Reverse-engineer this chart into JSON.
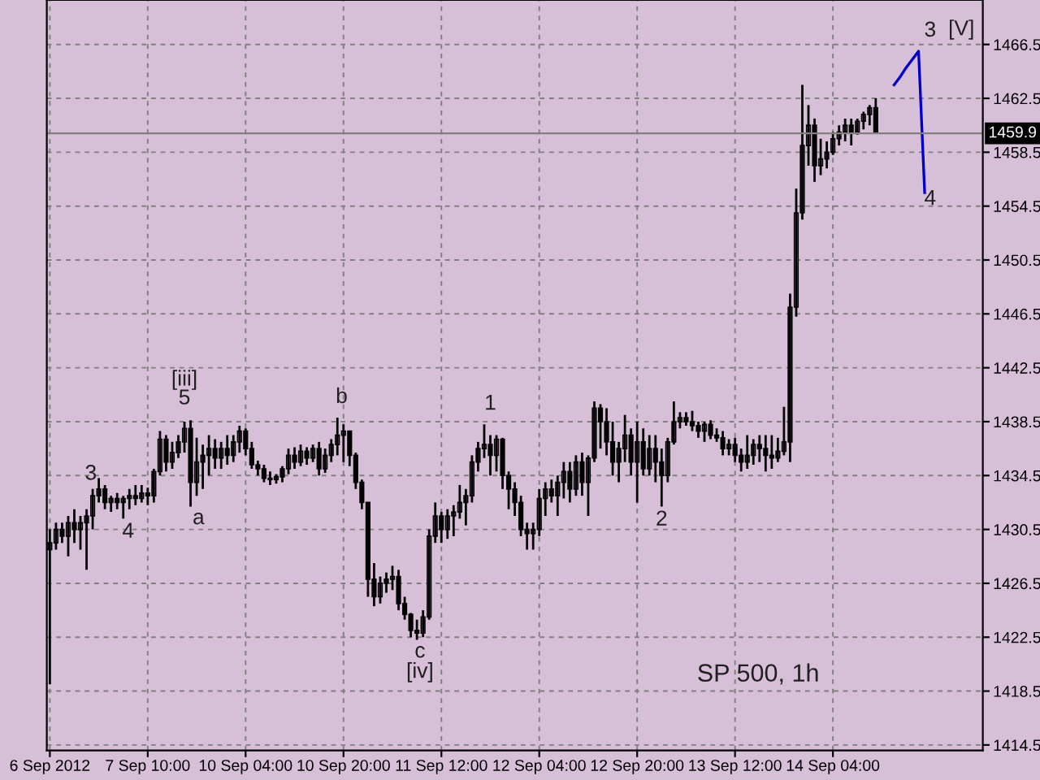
{
  "chart_data": {
    "type": "candlestick",
    "color": "#000000",
    "categories": [
      "6 Sep 2012",
      null,
      null,
      null,
      null,
      null,
      null,
      null,
      null,
      null,
      null,
      null,
      null,
      null,
      null,
      null,
      "7 Sep 10:00",
      null,
      null,
      null,
      null,
      null,
      null,
      null,
      null,
      null,
      null,
      null,
      null,
      null,
      null,
      null,
      "10 Sep 04:00",
      null,
      null,
      null,
      null,
      null,
      null,
      null,
      null,
      null,
      null,
      null,
      null,
      null,
      null,
      null,
      "10 Sep 20:00",
      null,
      null,
      null,
      null,
      null,
      null,
      null,
      null,
      null,
      null,
      null,
      null,
      null,
      null,
      null,
      "11 Sep 12:00",
      null,
      null,
      null,
      null,
      null,
      null,
      null,
      null,
      null,
      null,
      null,
      null,
      null,
      null,
      null,
      "12 Sep 04:00",
      null,
      null,
      null,
      null,
      null,
      null,
      null,
      null,
      null,
      null,
      null,
      null,
      null,
      null,
      null,
      "12 Sep 20:00",
      null,
      null,
      null,
      null,
      null,
      null,
      null,
      null,
      null,
      null,
      null,
      null,
      null,
      null,
      null,
      "13 Sep 12:00",
      null,
      null,
      null,
      null,
      null,
      null,
      null,
      null,
      null,
      null,
      null,
      null,
      null,
      null,
      null,
      "14 Sep 04:00",
      null,
      null,
      null,
      null,
      null,
      null,
      null,
      null,
      null,
      null,
      null,
      null,
      null,
      null,
      null,
      null,
      null,
      null,
      null,
      null,
      null,
      null,
      null,
      null
    ],
    "ohlc": [
      [
        1429,
        1430.5,
        1419,
        1429.5
      ],
      [
        1429.5,
        1431,
        1429,
        1430.5
      ],
      [
        1430.5,
        1431,
        1429.5,
        1430
      ],
      [
        1430,
        1431.5,
        1428.5,
        1431
      ],
      [
        1431,
        1432,
        1429.5,
        1430.5
      ],
      [
        1430.5,
        1431.5,
        1429,
        1431
      ],
      [
        1431,
        1432,
        1427.5,
        1431.5
      ],
      [
        1431.5,
        1433.5,
        1430.5,
        1433
      ],
      [
        1433,
        1434.3,
        1432.5,
        1433.5
      ],
      [
        1433.5,
        1433.8,
        1432,
        1432.5
      ],
      [
        1432.5,
        1433,
        1431.8,
        1432.8
      ],
      [
        1432.8,
        1433.2,
        1432,
        1432.5
      ],
      [
        1432.5,
        1433,
        1431.3,
        1432.8
      ],
      [
        1432.8,
        1433.5,
        1432,
        1433
      ],
      [
        1433,
        1433.8,
        1432.3,
        1432.8
      ],
      [
        1432.8,
        1433.8,
        1432.5,
        1433.2
      ],
      [
        1433.2,
        1433.6,
        1432.3,
        1433
      ],
      [
        1433,
        1435,
        1432.5,
        1434.8
      ],
      [
        1434.8,
        1437.8,
        1434.5,
        1437.2
      ],
      [
        1437.2,
        1437.5,
        1434.8,
        1435.5
      ],
      [
        1435.5,
        1437,
        1435,
        1436.2
      ],
      [
        1436.2,
        1437.5,
        1435.8,
        1437
      ],
      [
        1437,
        1438.5,
        1436.2,
        1438
      ],
      [
        1438,
        1438.6,
        1432.2,
        1434
      ],
      [
        1434,
        1437.3,
        1433,
        1435.5
      ],
      [
        1435.5,
        1436.8,
        1433.5,
        1436
      ],
      [
        1436,
        1437.5,
        1434.5,
        1436.5
      ],
      [
        1436.5,
        1437.2,
        1435,
        1435.8
      ],
      [
        1435.8,
        1437,
        1435,
        1436.5
      ],
      [
        1436.5,
        1437.5,
        1435.3,
        1436
      ],
      [
        1436,
        1437.5,
        1435.5,
        1437
      ],
      [
        1437,
        1438.2,
        1436.2,
        1437.8
      ],
      [
        1437.8,
        1438,
        1436,
        1436.5
      ],
      [
        1436.5,
        1437,
        1435,
        1435.3
      ],
      [
        1435.3,
        1435.6,
        1434.5,
        1435
      ],
      [
        1435,
        1435.3,
        1434,
        1434.3
      ],
      [
        1434.3,
        1434.8,
        1433.8,
        1434.2
      ],
      [
        1434.2,
        1434.6,
        1433.9,
        1434.4
      ],
      [
        1434.4,
        1435.2,
        1434,
        1435
      ],
      [
        1435,
        1436.5,
        1434.6,
        1436
      ],
      [
        1436,
        1436.6,
        1435,
        1435.5
      ],
      [
        1435.5,
        1436.8,
        1435.2,
        1436.3
      ],
      [
        1436.3,
        1436.6,
        1435.3,
        1435.8
      ],
      [
        1435.8,
        1436.8,
        1435.5,
        1436.5
      ],
      [
        1436.5,
        1437,
        1434.5,
        1435
      ],
      [
        1435,
        1436.5,
        1434.7,
        1436
      ],
      [
        1436,
        1437.2,
        1435.5,
        1436.8
      ],
      [
        1436.8,
        1438.8,
        1436,
        1437.5
      ],
      [
        1437.5,
        1438.3,
        1435.5,
        1437.8
      ],
      [
        1437.8,
        1437.8,
        1435.2,
        1436
      ],
      [
        1436,
        1436.2,
        1433.5,
        1434
      ],
      [
        1434,
        1434.2,
        1432,
        1432.5
      ],
      [
        1432.5,
        1432.5,
        1425.5,
        1426.8
      ],
      [
        1426.8,
        1428,
        1424.8,
        1425.5
      ],
      [
        1425.5,
        1427,
        1425,
        1426.5
      ],
      [
        1426.5,
        1427.3,
        1425.8,
        1426.8
      ],
      [
        1426.8,
        1427.8,
        1426,
        1427
      ],
      [
        1427,
        1427.5,
        1424.5,
        1425
      ],
      [
        1425,
        1425.5,
        1423.8,
        1424.2
      ],
      [
        1424.2,
        1424.3,
        1422.5,
        1423
      ],
      [
        1423,
        1423.8,
        1422.3,
        1422.8
      ],
      [
        1422.8,
        1424.5,
        1422.5,
        1424
      ],
      [
        1424,
        1430.5,
        1423.8,
        1430
      ],
      [
        1430,
        1432.5,
        1429.5,
        1431.5
      ],
      [
        1431.5,
        1431.8,
        1429.5,
        1430.5
      ],
      [
        1430.5,
        1432,
        1429.8,
        1431.5
      ],
      [
        1431.5,
        1432.3,
        1430,
        1431.8
      ],
      [
        1431.8,
        1433.8,
        1431.3,
        1432.5
      ],
      [
        1432.5,
        1433.5,
        1430.8,
        1433
      ],
      [
        1433,
        1436,
        1432.5,
        1435.5
      ],
      [
        1435.5,
        1437,
        1434.8,
        1436.5
      ],
      [
        1436.5,
        1438.3,
        1435.8,
        1436.8
      ],
      [
        1436.8,
        1437.5,
        1434.5,
        1436
      ],
      [
        1436,
        1437.5,
        1434.8,
        1437.2
      ],
      [
        1437.2,
        1437.3,
        1433.5,
        1434.5
      ],
      [
        1434.5,
        1434.8,
        1432,
        1433.5
      ],
      [
        1433.5,
        1434,
        1431.5,
        1432.5
      ],
      [
        1432.5,
        1433,
        1430,
        1430.5
      ],
      [
        1430.5,
        1431,
        1429,
        1430.2
      ],
      [
        1430.2,
        1431,
        1429,
        1430.5
      ],
      [
        1430.5,
        1433.5,
        1430,
        1432.8
      ],
      [
        1432.8,
        1434,
        1431.5,
        1433.5
      ],
      [
        1433.5,
        1434.2,
        1432.5,
        1433
      ],
      [
        1433,
        1434.5,
        1431.5,
        1434
      ],
      [
        1434,
        1435.5,
        1432.8,
        1434.8
      ],
      [
        1434.8,
        1435.5,
        1432.5,
        1433.5
      ],
      [
        1433.5,
        1436,
        1433,
        1435.5
      ],
      [
        1435.5,
        1436.2,
        1433,
        1434
      ],
      [
        1434,
        1436,
        1431.5,
        1435.8
      ],
      [
        1435.8,
        1440,
        1435.5,
        1439.5
      ],
      [
        1439.5,
        1439.8,
        1436.5,
        1438.5
      ],
      [
        1438.5,
        1439.5,
        1436,
        1437
      ],
      [
        1437,
        1438.5,
        1434.5,
        1435.5
      ],
      [
        1435.5,
        1437,
        1434,
        1436.5
      ],
      [
        1436.5,
        1439,
        1435.5,
        1437.5
      ],
      [
        1437.5,
        1438,
        1434.5,
        1435.5
      ],
      [
        1435.5,
        1438.5,
        1432.5,
        1437
      ],
      [
        1437,
        1438,
        1434.5,
        1435
      ],
      [
        1435,
        1437.5,
        1434.5,
        1436.5
      ],
      [
        1436.5,
        1437.5,
        1434,
        1435.5
      ],
      [
        1435.5,
        1436.5,
        1432.2,
        1434.5
      ],
      [
        1434.5,
        1437.3,
        1434,
        1437
      ],
      [
        1437,
        1440,
        1436.8,
        1438.5
      ],
      [
        1438.5,
        1439.2,
        1438,
        1438.8
      ],
      [
        1438.8,
        1439.2,
        1438.2,
        1438.5
      ],
      [
        1438.5,
        1439.3,
        1437.8,
        1438.2
      ],
      [
        1438.2,
        1438.5,
        1437.3,
        1437.8
      ],
      [
        1437.8,
        1438.5,
        1437,
        1438.3
      ],
      [
        1438.3,
        1438.6,
        1437.2,
        1437.5
      ],
      [
        1437.5,
        1438,
        1437,
        1437.3
      ],
      [
        1437.3,
        1437.8,
        1436,
        1436.5
      ],
      [
        1436.5,
        1437.2,
        1436,
        1436.8
      ],
      [
        1436.8,
        1437.3,
        1435.5,
        1436
      ],
      [
        1436,
        1436.5,
        1434.8,
        1435.5
      ],
      [
        1435.5,
        1437.5,
        1435,
        1436
      ],
      [
        1436,
        1437.2,
        1435.3,
        1436.8
      ],
      [
        1436.8,
        1437.5,
        1435.5,
        1436.5
      ],
      [
        1436.5,
        1437.5,
        1434.8,
        1436
      ],
      [
        1436,
        1437.5,
        1435,
        1435.8
      ],
      [
        1435.8,
        1437.3,
        1435.5,
        1436.3
      ],
      [
        1436.3,
        1439.6,
        1436,
        1437
      ],
      [
        1437,
        1448,
        1435.5,
        1447
      ],
      [
        1447,
        1455.8,
        1446.3,
        1454
      ],
      [
        1454,
        1463.5,
        1453.5,
        1459
      ],
      [
        1459,
        1462,
        1457.5,
        1460.5
      ],
      [
        1460.5,
        1461,
        1456.3,
        1457.5
      ],
      [
        1457.5,
        1459.5,
        1456.8,
        1458
      ],
      [
        1458,
        1459.3,
        1457.3,
        1458.5
      ],
      [
        1458.5,
        1460,
        1458.3,
        1459.5
      ],
      [
        1459.5,
        1460.5,
        1459,
        1460
      ],
      [
        1460,
        1461,
        1459.3,
        1460.5
      ],
      [
        1460.5,
        1461,
        1459,
        1460
      ],
      [
        1460,
        1461,
        1459.8,
        1460.8
      ],
      [
        1460.8,
        1461.5,
        1460.2,
        1461.3
      ],
      [
        1461.3,
        1462,
        1460.5,
        1461.8
      ],
      [
        1461.8,
        1462.5,
        1459.9,
        1459.9
      ],
      null,
      null,
      null,
      null,
      null,
      null,
      null,
      null,
      null,
      null,
      null,
      null,
      null,
      null,
      null,
      null,
      null
    ],
    "series": [
      {
        "type": "line",
        "color": "#0000cc",
        "values": [
          null,
          null,
          null,
          null,
          null,
          null,
          null,
          null,
          null,
          null,
          null,
          null,
          null,
          null,
          null,
          null,
          null,
          null,
          null,
          null,
          null,
          null,
          null,
          null,
          null,
          null,
          null,
          null,
          null,
          null,
          null,
          null,
          null,
          null,
          null,
          null,
          null,
          null,
          null,
          null,
          null,
          null,
          null,
          null,
          null,
          null,
          null,
          null,
          null,
          null,
          null,
          null,
          null,
          null,
          null,
          null,
          null,
          null,
          null,
          null,
          null,
          null,
          null,
          null,
          null,
          null,
          null,
          null,
          null,
          null,
          null,
          null,
          null,
          null,
          null,
          null,
          null,
          null,
          null,
          null,
          null,
          null,
          null,
          null,
          null,
          null,
          null,
          null,
          null,
          null,
          null,
          null,
          null,
          null,
          null,
          null,
          null,
          null,
          null,
          null,
          null,
          null,
          null,
          null,
          null,
          null,
          null,
          null,
          null,
          null,
          null,
          null,
          null,
          null,
          null,
          null,
          null,
          null,
          null,
          null,
          null,
          null,
          null,
          null,
          null,
          null,
          null,
          null,
          null,
          null,
          null,
          null,
          null,
          null,
          null,
          null,
          null,
          null,
          1463.5,
          1464.1,
          1464.8,
          1465.4,
          1466,
          1455.5,
          null,
          null,
          null,
          null,
          null,
          null,
          null,
          null,
          null
        ]
      }
    ],
    "ylim": [
      1414.1,
      1469.8
    ],
    "yticks": [
      1414.5,
      1418.5,
      1422.5,
      1426.5,
      1430.5,
      1434.5,
      1438.5,
      1442.5,
      1446.5,
      1450.5,
      1454.5,
      1458.5,
      1462.5,
      1466.5
    ],
    "grid": true,
    "ref_lines": [
      {
        "axis": "y",
        "value": 1459.9,
        "label": "1459.9",
        "color": "#808080"
      }
    ],
    "annotations": [
      "3",
      "4",
      "[iii]",
      "5",
      "a",
      "b",
      "c",
      "[iv]",
      "1",
      "2",
      "3",
      "[V]",
      "4",
      "SP 500, 1h"
    ]
  }
}
